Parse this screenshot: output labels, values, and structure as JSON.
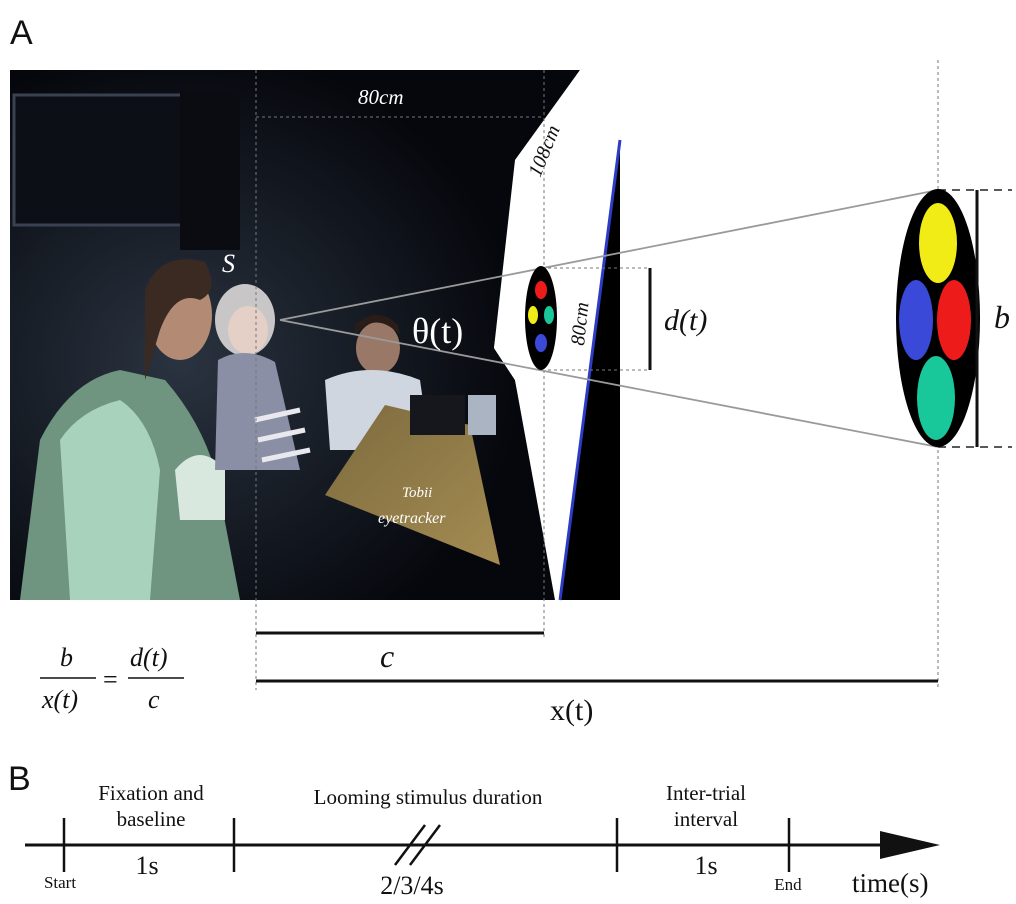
{
  "panel_a": {
    "label": "A",
    "subject_label": "S",
    "width_label": "80cm",
    "diagonal_label": "108cm",
    "height_label": "80cm",
    "tracker_line1": "Tobii",
    "tracker_line2": "eyetracker",
    "angle_label": "θ(t)",
    "disk_size_label": "d(t)",
    "object_size_label": "b",
    "screen_distance_label": "c",
    "object_distance_label": "x(t)",
    "formula": {
      "num_left": "b",
      "den_left": "x(t)",
      "equals": "=",
      "num_right": "d(t)",
      "den_right": "c"
    },
    "stimulus_colors": {
      "top": "#f2ec16",
      "left": "#3b49d8",
      "right": "#ee1b1b",
      "bottom": "#18c79a"
    }
  },
  "panel_b": {
    "label": "B",
    "phases": [
      {
        "line1": "Fixation and",
        "line2": "baseline",
        "duration": "1s"
      },
      {
        "line1": "Looming stimulus duration",
        "duration": "2/3/4s"
      },
      {
        "line1": "Inter-trial",
        "line2": "interval",
        "duration": "1s"
      }
    ],
    "start_label": "Start",
    "end_label": "End",
    "axis_label": "time(s)"
  }
}
